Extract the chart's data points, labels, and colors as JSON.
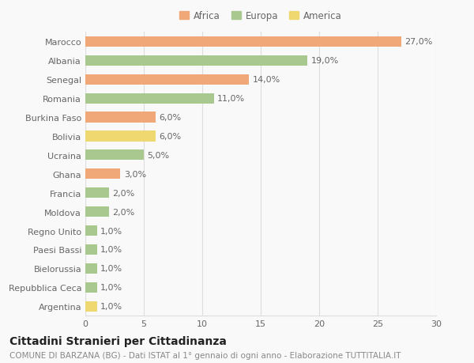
{
  "categories": [
    "Marocco",
    "Albania",
    "Senegal",
    "Romania",
    "Burkina Faso",
    "Bolivia",
    "Ucraina",
    "Ghana",
    "Francia",
    "Moldova",
    "Regno Unito",
    "Paesi Bassi",
    "Bielorussia",
    "Repubblica Ceca",
    "Argentina"
  ],
  "values": [
    27.0,
    19.0,
    14.0,
    11.0,
    6.0,
    6.0,
    5.0,
    3.0,
    2.0,
    2.0,
    1.0,
    1.0,
    1.0,
    1.0,
    1.0
  ],
  "continents": [
    "Africa",
    "Europa",
    "Africa",
    "Europa",
    "Africa",
    "America",
    "Europa",
    "Africa",
    "Europa",
    "Europa",
    "Europa",
    "Europa",
    "Europa",
    "Europa",
    "America"
  ],
  "continent_colors": {
    "Africa": "#F0A878",
    "Europa": "#A8C890",
    "America": "#F0D870"
  },
  "legend_items": [
    "Africa",
    "Europa",
    "America"
  ],
  "legend_colors": [
    "#F0A878",
    "#A8C890",
    "#F0D870"
  ],
  "title": "Cittadini Stranieri per Cittadinanza",
  "subtitle": "COMUNE DI BARZANA (BG) - Dati ISTAT al 1° gennaio di ogni anno - Elaborazione TUTTITALIA.IT",
  "xlim": [
    0,
    30
  ],
  "xticks": [
    0,
    5,
    10,
    15,
    20,
    25,
    30
  ],
  "background_color": "#f9f9f9",
  "grid_color": "#dddddd",
  "bar_height": 0.55,
  "label_fontsize": 8,
  "tick_fontsize": 8,
  "title_fontsize": 10,
  "subtitle_fontsize": 7.5
}
